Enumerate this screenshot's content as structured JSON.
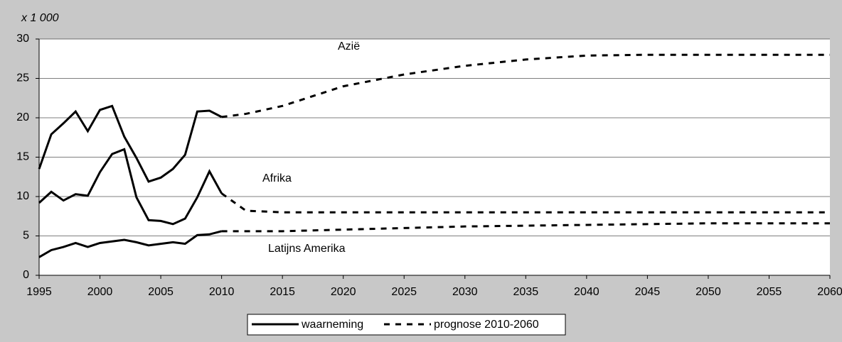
{
  "chart_data": {
    "type": "line",
    "y_label": "x 1 000",
    "xlim": [
      1995,
      2060
    ],
    "xticks": [
      1995,
      2000,
      2005,
      2010,
      2015,
      2020,
      2025,
      2030,
      2035,
      2040,
      2045,
      2050,
      2055,
      2060
    ],
    "ylim": [
      0,
      30
    ],
    "yticks": [
      0,
      5,
      10,
      15,
      20,
      25,
      30
    ],
    "grid": true,
    "legend": "bottom",
    "annotations": [
      "Azië",
      "Afrika",
      "Latijns Amerika"
    ],
    "series": [
      {
        "name": "waarneming",
        "color": "#000000",
        "dashed": false,
        "x": [
          1995,
          1996,
          1997,
          1998,
          1999,
          2000,
          2001,
          2002,
          2003,
          2004,
          2005,
          2006,
          2007,
          2008,
          2009,
          2010
        ],
        "lines": [
          [
            13.5,
            17.9,
            19.3,
            20.8,
            18.3,
            21.0,
            21.5,
            17.6,
            14.9,
            11.9,
            12.4,
            13.5,
            15.3,
            20.8,
            20.9,
            20.1
          ],
          [
            9.2,
            10.6,
            9.5,
            10.3,
            10.1,
            13.1,
            15.4,
            16.0,
            9.9,
            7.0,
            6.9,
            6.5,
            7.2,
            9.9,
            13.2,
            10.4
          ],
          [
            2.3,
            3.2,
            3.6,
            4.1,
            3.6,
            4.1,
            4.3,
            4.5,
            4.2,
            3.8,
            4.0,
            4.2,
            4.0,
            5.1,
            5.2,
            5.6
          ]
        ]
      },
      {
        "name": "prognose 2010-2060",
        "color": "#000000",
        "dashed": true,
        "x": [
          2010,
          2012,
          2015,
          2020,
          2025,
          2030,
          2035,
          2040,
          2045,
          2050,
          2055,
          2060
        ],
        "lines": [
          [
            20.1,
            20.5,
            21.5,
            24.0,
            25.5,
            26.6,
            27.4,
            27.9,
            28.0,
            28.0,
            28.0,
            28.0
          ],
          [
            10.4,
            8.2,
            8.0,
            8.0,
            8.0,
            8.0,
            8.0,
            8.0,
            8.0,
            8.0,
            8.0,
            8.0
          ],
          [
            5.6,
            5.6,
            5.6,
            5.8,
            6.0,
            6.2,
            6.3,
            6.4,
            6.5,
            6.6,
            6.6,
            6.6
          ]
        ]
      }
    ]
  }
}
